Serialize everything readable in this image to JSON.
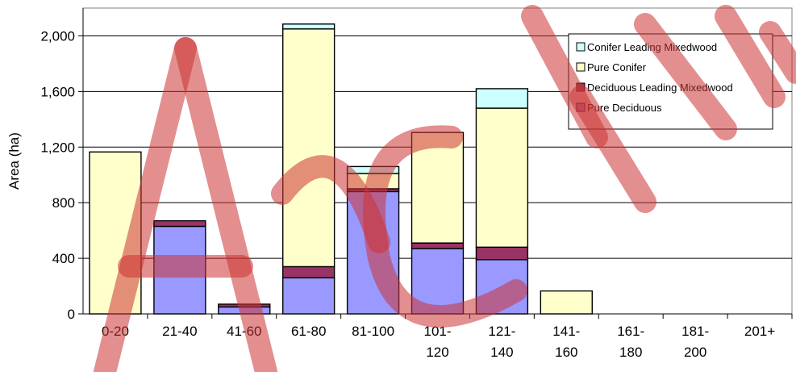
{
  "chart_data": {
    "type": "bar",
    "stacked": true,
    "ylabel": "Area (ha)",
    "xlabel": "",
    "ylim": [
      0,
      2200
    ],
    "yticks": [
      0,
      400,
      800,
      1200,
      1600,
      2000
    ],
    "ytick_labels": [
      "0",
      "400",
      "800",
      "1,200",
      "1,600",
      "2,000"
    ],
    "grid": true,
    "legend_position": "top-right",
    "categories": [
      [
        "0-20"
      ],
      [
        "21-40"
      ],
      [
        "41-60"
      ],
      [
        "61-80"
      ],
      [
        "81-100"
      ],
      [
        "101-",
        "120"
      ],
      [
        "121-",
        "140"
      ],
      [
        "141-",
        "160"
      ],
      [
        "161-",
        "180"
      ],
      [
        "181-",
        "200"
      ],
      [
        "201+"
      ]
    ],
    "series": [
      {
        "name": "Pure Deciduous",
        "color": "#9999ff",
        "values": [
          0,
          630,
          50,
          260,
          880,
          470,
          390,
          0,
          0,
          0,
          0
        ]
      },
      {
        "name": "Deciduous Leading Mixedwood",
        "color": "#993366",
        "values": [
          0,
          40,
          20,
          80,
          20,
          40,
          90,
          0,
          0,
          0,
          0
        ]
      },
      {
        "name": "Pure Conifer",
        "color": "#ffffcc",
        "values": [
          1165,
          0,
          0,
          1710,
          110,
          795,
          1000,
          165,
          0,
          0,
          0
        ]
      },
      {
        "name": "Conifer Leading Mixedwood",
        "color": "#ccffff",
        "values": [
          0,
          0,
          0,
          35,
          50,
          0,
          140,
          0,
          0,
          0,
          0
        ]
      }
    ],
    "legend_order": [
      "Conifer Leading Mixedwood",
      "Pure Conifer",
      "Deciduous Leading Mixedwood",
      "Pure Deciduous"
    ],
    "watermark": {
      "text": "Archive",
      "color": "#cc3333"
    }
  }
}
